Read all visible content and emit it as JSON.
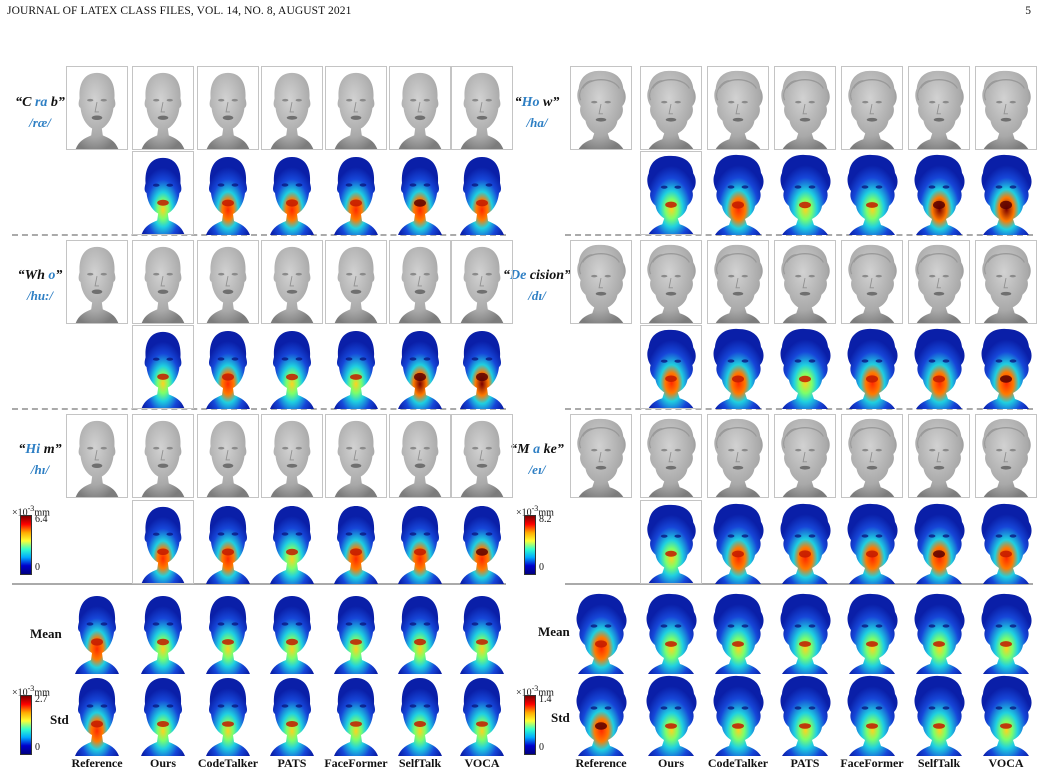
{
  "header": {
    "journal": "JOURNAL OF LATEX CLASS FILES, VOL. 14, NO. 8, AUGUST 2021",
    "page": "5"
  },
  "columns": [
    "Reference",
    "Ours",
    "CodeTalker",
    "PATS",
    "FaceFormer",
    "SelfTalk",
    "VOCA"
  ],
  "left_words": [
    {
      "open": "“C ",
      "hl": "ra",
      "close": " b”",
      "phoneme": "/ræ/"
    },
    {
      "open": "“Wh ",
      "hl": "o",
      "close": "”",
      "phoneme": "/hu:/"
    },
    {
      "open": "“",
      "hl": "Hi",
      "close": " m”",
      "phoneme": "/hɪ/"
    }
  ],
  "right_words": [
    {
      "open": "“",
      "hl": "Ho",
      "close": " w”",
      "phoneme": "/ha/"
    },
    {
      "open": "“",
      "hl": "De",
      "close": " cision”",
      "phoneme": "/dɪ/"
    },
    {
      "open": "“M ",
      "hl": "a",
      "close": " ke”",
      "phoneme": "/eɪ/"
    }
  ],
  "stat_labels": {
    "mean": "Mean",
    "std": "Std"
  },
  "colorbars": {
    "left_error": {
      "unit_base": "×10",
      "unit_exp": "-3",
      "unit": "mm",
      "max": "6.4",
      "min": "0"
    },
    "right_error": {
      "unit_base": "×10",
      "unit_exp": "-3",
      "unit": "mm",
      "max": "8.2",
      "min": "0"
    },
    "left_std": {
      "unit_base": "×10",
      "unit_exp": "-3",
      "unit": "mm",
      "max": "2.7",
      "min": "0"
    },
    "right_std": {
      "unit_base": "×10",
      "unit_exp": "-3",
      "unit": "mm",
      "max": "1.4",
      "min": "0"
    }
  },
  "colors": {
    "mesh": "#a9a9a9",
    "heat_low": "#0a1fa8",
    "heat_mid": "#1fd0e0",
    "heat_high": "#ff2a00",
    "accent": "#2e7fc4"
  }
}
